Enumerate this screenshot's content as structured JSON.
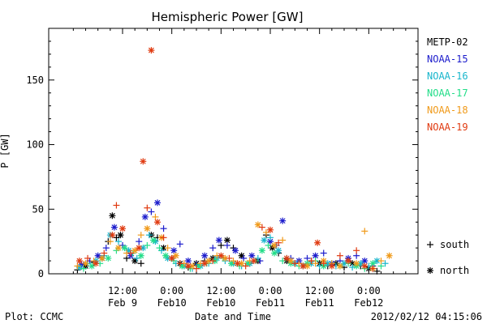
{
  "chart_data": {
    "type": "scatter",
    "title": "Hemispheric Power [GW]",
    "xlabel": "Date and Time",
    "ylabel": "P [GW]",
    "ylim": [
      0,
      190
    ],
    "xlim_hours": [
      -6,
      84
    ],
    "yticks": [
      0,
      50,
      100,
      150
    ],
    "xticks": [
      {
        "hour": 12,
        "line1": "12:00",
        "line2": "Feb 9"
      },
      {
        "hour": 24,
        "line1": "0:00",
        "line2": "Feb10"
      },
      {
        "hour": 36,
        "line1": "12:00",
        "line2": "Feb10"
      },
      {
        "hour": 48,
        "line1": "0:00",
        "line2": "Feb11"
      },
      {
        "hour": 60,
        "line1": "12:00",
        "line2": "Feb11"
      },
      {
        "hour": 72,
        "line1": "0:00",
        "line2": "Feb12"
      }
    ],
    "markers": {
      "south": "+",
      "north": "*"
    },
    "marker_legend": [
      {
        "marker": "+",
        "label": "south"
      },
      {
        "marker": "*",
        "label": "north"
      }
    ],
    "series": [
      {
        "name": "METP-02",
        "color": "#000000",
        "points": [
          [
            1,
            3,
            "+"
          ],
          [
            3,
            6,
            "*"
          ],
          [
            5,
            9,
            "+"
          ],
          [
            7,
            12,
            "*"
          ],
          [
            8.5,
            25,
            "+"
          ],
          [
            9.5,
            45,
            "*"
          ],
          [
            10.5,
            28,
            "+"
          ],
          [
            11.5,
            30,
            "*"
          ],
          [
            13,
            12,
            "+"
          ],
          [
            15,
            10,
            "*"
          ],
          [
            16.5,
            8,
            "+"
          ],
          [
            19,
            30,
            "*"
          ],
          [
            20.5,
            28,
            "+"
          ],
          [
            22,
            20,
            "*"
          ],
          [
            24,
            12,
            "+"
          ],
          [
            26,
            8,
            "*"
          ],
          [
            28,
            5,
            "+"
          ],
          [
            30,
            8,
            "*"
          ],
          [
            32,
            10,
            "+"
          ],
          [
            34,
            12,
            "*"
          ],
          [
            36,
            22,
            "+"
          ],
          [
            37.5,
            26,
            "*"
          ],
          [
            39,
            20,
            "+"
          ],
          [
            41,
            14,
            "*"
          ],
          [
            43,
            8,
            "+"
          ],
          [
            45,
            10,
            "*"
          ],
          [
            47,
            30,
            "+"
          ],
          [
            48.5,
            20,
            "*"
          ],
          [
            50,
            16,
            "+"
          ],
          [
            52,
            10,
            "*"
          ],
          [
            54,
            8,
            "+"
          ],
          [
            56,
            6,
            "*"
          ],
          [
            58,
            10,
            "+"
          ],
          [
            60,
            8,
            "*"
          ],
          [
            62,
            6,
            "+"
          ],
          [
            64,
            8,
            "*"
          ],
          [
            66,
            5,
            "+"
          ],
          [
            68,
            8,
            "*"
          ],
          [
            70,
            6,
            "+"
          ],
          [
            72,
            4,
            "*"
          ],
          [
            74,
            2,
            "+"
          ]
        ]
      },
      {
        "name": "NOAA-15",
        "color": "#1c1ccc",
        "points": [
          [
            2,
            7,
            "*"
          ],
          [
            4,
            10,
            "+"
          ],
          [
            6,
            14,
            "*"
          ],
          [
            8,
            20,
            "+"
          ],
          [
            10,
            36,
            "*"
          ],
          [
            12,
            22,
            "+"
          ],
          [
            14,
            14,
            "*"
          ],
          [
            16,
            25,
            "+"
          ],
          [
            17.5,
            44,
            "*"
          ],
          [
            19,
            48,
            "+"
          ],
          [
            20.5,
            55,
            "*"
          ],
          [
            22,
            35,
            "+"
          ],
          [
            24.5,
            18,
            "*"
          ],
          [
            26,
            23,
            "+"
          ],
          [
            28,
            10,
            "*"
          ],
          [
            30,
            7,
            "+"
          ],
          [
            32,
            14,
            "*"
          ],
          [
            34,
            20,
            "+"
          ],
          [
            35.5,
            26,
            "*"
          ],
          [
            37.5,
            22,
            "+"
          ],
          [
            39.5,
            18,
            "*"
          ],
          [
            41.5,
            12,
            "+"
          ],
          [
            43.5,
            14,
            "*"
          ],
          [
            45.5,
            10,
            "+"
          ],
          [
            48,
            25,
            "*"
          ],
          [
            49.5,
            22,
            "+"
          ],
          [
            51,
            41,
            "*"
          ],
          [
            53,
            12,
            "+"
          ],
          [
            55,
            10,
            "*"
          ],
          [
            57,
            12,
            "+"
          ],
          [
            59,
            14,
            "*"
          ],
          [
            61,
            16,
            "+"
          ],
          [
            63,
            8,
            "*"
          ],
          [
            65,
            10,
            "+"
          ],
          [
            67,
            12,
            "*"
          ],
          [
            69,
            14,
            "+"
          ],
          [
            71,
            10,
            "*"
          ],
          [
            73,
            6,
            "+"
          ]
        ]
      },
      {
        "name": "NOAA-16",
        "color": "#19b6cc",
        "points": [
          [
            1.5,
            5,
            "*"
          ],
          [
            3.5,
            8,
            "+"
          ],
          [
            5.5,
            10,
            "*"
          ],
          [
            7.5,
            14,
            "+"
          ],
          [
            9,
            30,
            "*"
          ],
          [
            11,
            25,
            "+"
          ],
          [
            13.5,
            18,
            "*"
          ],
          [
            15.5,
            12,
            "+"
          ],
          [
            17,
            20,
            "*"
          ],
          [
            18.5,
            30,
            "+"
          ],
          [
            20,
            25,
            "*"
          ],
          [
            21.5,
            18,
            "+"
          ],
          [
            23,
            12,
            "*"
          ],
          [
            25,
            8,
            "+"
          ],
          [
            27,
            6,
            "*"
          ],
          [
            29,
            4,
            "+"
          ],
          [
            31,
            6,
            "*"
          ],
          [
            33,
            8,
            "+"
          ],
          [
            35,
            12,
            "*"
          ],
          [
            37,
            10,
            "+"
          ],
          [
            39,
            8,
            "*"
          ],
          [
            41,
            6,
            "+"
          ],
          [
            43,
            8,
            "*"
          ],
          [
            45,
            12,
            "+"
          ],
          [
            46.5,
            26,
            "*"
          ],
          [
            48,
            28,
            "+"
          ],
          [
            50,
            18,
            "*"
          ],
          [
            52,
            12,
            "+"
          ],
          [
            54,
            8,
            "*"
          ],
          [
            56,
            6,
            "+"
          ],
          [
            58,
            8,
            "*"
          ],
          [
            60,
            6,
            "+"
          ],
          [
            62,
            8,
            "*"
          ],
          [
            64,
            6,
            "+"
          ],
          [
            66,
            8,
            "*"
          ],
          [
            68,
            5,
            "+"
          ],
          [
            70,
            8,
            "*"
          ],
          [
            72,
            6,
            "+"
          ],
          [
            74,
            10,
            "*"
          ],
          [
            76,
            8,
            "+"
          ]
        ]
      },
      {
        "name": "NOAA-17",
        "color": "#22dd88",
        "points": [
          [
            2.5,
            4,
            "+"
          ],
          [
            4.5,
            6,
            "*"
          ],
          [
            6.5,
            8,
            "+"
          ],
          [
            8.5,
            12,
            "*"
          ],
          [
            10.5,
            18,
            "+"
          ],
          [
            12.5,
            20,
            "*"
          ],
          [
            14.5,
            16,
            "+"
          ],
          [
            16.5,
            14,
            "*"
          ],
          [
            18,
            22,
            "+"
          ],
          [
            19.5,
            26,
            "*"
          ],
          [
            21,
            20,
            "+"
          ],
          [
            22.5,
            14,
            "*"
          ],
          [
            24.5,
            10,
            "+"
          ],
          [
            26.5,
            6,
            "*"
          ],
          [
            28.5,
            4,
            "+"
          ],
          [
            30.5,
            6,
            "*"
          ],
          [
            32.5,
            8,
            "+"
          ],
          [
            34.5,
            10,
            "*"
          ],
          [
            36.5,
            12,
            "+"
          ],
          [
            38.5,
            8,
            "*"
          ],
          [
            40.5,
            6,
            "+"
          ],
          [
            42.5,
            8,
            "*"
          ],
          [
            44.5,
            10,
            "+"
          ],
          [
            46,
            18,
            "*"
          ],
          [
            47.5,
            22,
            "+"
          ],
          [
            49,
            16,
            "*"
          ],
          [
            51,
            10,
            "+"
          ],
          [
            53,
            8,
            "*"
          ],
          [
            55,
            6,
            "+"
          ],
          [
            57,
            8,
            "*"
          ],
          [
            59,
            10,
            "+"
          ],
          [
            61,
            6,
            "*"
          ],
          [
            63,
            8,
            "+"
          ],
          [
            65,
            6,
            "*"
          ],
          [
            67,
            8,
            "+"
          ],
          [
            69,
            6,
            "*"
          ],
          [
            71,
            4,
            "+"
          ],
          [
            73,
            8,
            "*"
          ],
          [
            75,
            6,
            "+"
          ]
        ]
      },
      {
        "name": "NOAA-18",
        "color": "#f09a1a",
        "points": [
          [
            1,
            6,
            "+"
          ],
          [
            3,
            8,
            "*"
          ],
          [
            5,
            10,
            "+"
          ],
          [
            7,
            12,
            "*"
          ],
          [
            9,
            25,
            "+"
          ],
          [
            11,
            20,
            "*"
          ],
          [
            13,
            16,
            "+"
          ],
          [
            15,
            18,
            "*"
          ],
          [
            16.5,
            30,
            "+"
          ],
          [
            18,
            35,
            "*"
          ],
          [
            20,
            44,
            "+"
          ],
          [
            21.5,
            28,
            "*"
          ],
          [
            23,
            20,
            "+"
          ],
          [
            25,
            14,
            "*"
          ],
          [
            27,
            8,
            "+"
          ],
          [
            29,
            6,
            "*"
          ],
          [
            31,
            8,
            "+"
          ],
          [
            33,
            10,
            "*"
          ],
          [
            35,
            14,
            "+"
          ],
          [
            37,
            12,
            "*"
          ],
          [
            39,
            10,
            "+"
          ],
          [
            41,
            8,
            "*"
          ],
          [
            43,
            10,
            "+"
          ],
          [
            45,
            38,
            "*"
          ],
          [
            47,
            32,
            "+"
          ],
          [
            49,
            22,
            "*"
          ],
          [
            51,
            26,
            "+"
          ],
          [
            53,
            10,
            "*"
          ],
          [
            55,
            8,
            "+"
          ],
          [
            57,
            6,
            "*"
          ],
          [
            59,
            8,
            "+"
          ],
          [
            61,
            10,
            "*"
          ],
          [
            63,
            8,
            "+"
          ],
          [
            65,
            6,
            "*"
          ],
          [
            67,
            10,
            "+"
          ],
          [
            69,
            8,
            "*"
          ],
          [
            71,
            33,
            "+"
          ],
          [
            73,
            4,
            "*"
          ],
          [
            75,
            10,
            "+"
          ],
          [
            77,
            14,
            "*"
          ]
        ]
      },
      {
        "name": "NOAA-19",
        "color": "#e03a10",
        "points": [
          [
            1.5,
            10,
            "*"
          ],
          [
            3.5,
            12,
            "+"
          ],
          [
            5.5,
            8,
            "*"
          ],
          [
            7.5,
            16,
            "+"
          ],
          [
            9.5,
            30,
            "*"
          ],
          [
            10.5,
            53,
            "+"
          ],
          [
            12,
            35,
            "*"
          ],
          [
            14,
            16,
            "+"
          ],
          [
            16,
            20,
            "*"
          ],
          [
            17,
            87,
            "*"
          ],
          [
            18,
            51,
            "+"
          ],
          [
            19,
            173,
            "*"
          ],
          [
            20.5,
            40,
            "*"
          ],
          [
            22,
            28,
            "+"
          ],
          [
            24,
            12,
            "*"
          ],
          [
            26,
            8,
            "+"
          ],
          [
            28,
            6,
            "*"
          ],
          [
            30,
            4,
            "+"
          ],
          [
            32,
            8,
            "*"
          ],
          [
            34,
            10,
            "+"
          ],
          [
            36,
            14,
            "*"
          ],
          [
            38,
            12,
            "+"
          ],
          [
            40,
            8,
            "*"
          ],
          [
            42,
            6,
            "+"
          ],
          [
            44,
            10,
            "*"
          ],
          [
            46,
            36,
            "+"
          ],
          [
            48,
            34,
            "*"
          ],
          [
            50,
            24,
            "+"
          ],
          [
            52,
            12,
            "*"
          ],
          [
            54,
            8,
            "+"
          ],
          [
            56,
            6,
            "*"
          ],
          [
            58,
            10,
            "+"
          ],
          [
            59.5,
            24,
            "*"
          ],
          [
            61,
            8,
            "+"
          ],
          [
            63,
            6,
            "*"
          ],
          [
            65,
            14,
            "+"
          ],
          [
            67,
            10,
            "*"
          ],
          [
            69,
            18,
            "+"
          ],
          [
            71,
            6,
            "*"
          ],
          [
            73,
            4,
            "+"
          ]
        ]
      }
    ]
  },
  "footer": {
    "left": "Plot: CCMC",
    "center": "Date and Time",
    "right": "2012/02/12 04:15:06"
  }
}
